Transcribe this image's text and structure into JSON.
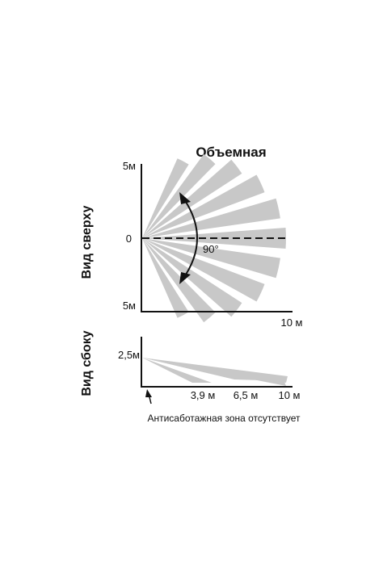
{
  "title": "Объемная",
  "top_view": {
    "side_label": "Вид сверху",
    "y_top": "5м",
    "y_zero": "0",
    "y_bottom": "5м",
    "x_end": "10 м",
    "angle": "90°"
  },
  "side_view": {
    "side_label": "Вид сбоку",
    "height": "2,5м",
    "ticks": [
      "3,9 м",
      "6,5 м",
      "10 м"
    ],
    "note": "Антисаботажная зона отсутствует"
  },
  "colors": {
    "zone": "#c8c8c8",
    "line": "#111111"
  }
}
